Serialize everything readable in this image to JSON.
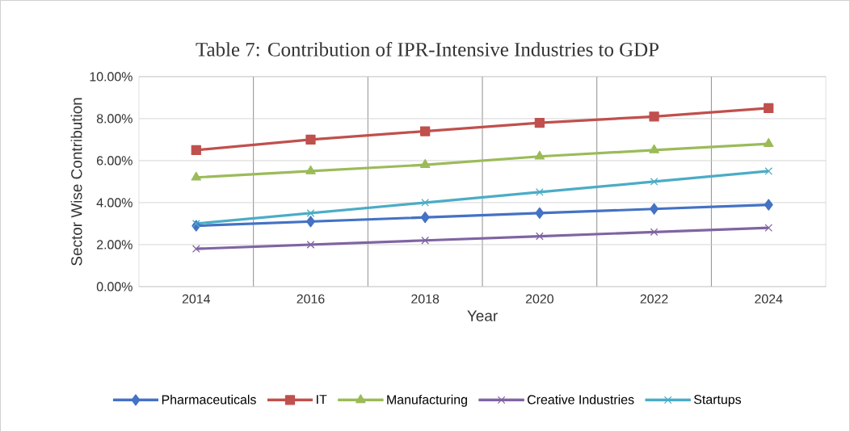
{
  "chart_data": {
    "type": "line",
    "title": "Table 7: Contribution of IPR-Intensive Industries to GDP",
    "xlabel": "Year",
    "ylabel": "Sector Wise Contribution",
    "categories": [
      "2014",
      "2016",
      "2018",
      "2020",
      "2022",
      "2024"
    ],
    "series": [
      {
        "name": "Pharmaceuticals",
        "color": "#4472c4",
        "marker": "diamond",
        "values": [
          2.9,
          3.1,
          3.3,
          3.5,
          3.7,
          3.9
        ]
      },
      {
        "name": "IT",
        "color": "#c0504d",
        "marker": "square",
        "values": [
          6.5,
          7.0,
          7.4,
          7.8,
          8.1,
          8.5
        ]
      },
      {
        "name": "Manufacturing",
        "color": "#9bbb59",
        "marker": "triangle",
        "values": [
          5.2,
          5.5,
          5.8,
          6.2,
          6.5,
          6.8
        ]
      },
      {
        "name": "Creative Industries",
        "color": "#8064a2",
        "marker": "cross",
        "values": [
          1.8,
          2.0,
          2.2,
          2.4,
          2.6,
          2.8
        ]
      },
      {
        "name": "Startups",
        "color": "#4bacc6",
        "marker": "cross",
        "values": [
          3.0,
          3.5,
          4.0,
          4.5,
          5.0,
          5.5
        ]
      }
    ],
    "ylim": [
      0,
      10
    ],
    "yticks": [
      {
        "value": 0,
        "label": "0.00%"
      },
      {
        "value": 2,
        "label": "2.00%"
      },
      {
        "value": 4,
        "label": "4.00%"
      },
      {
        "value": 6,
        "label": "6.00%"
      },
      {
        "value": 8,
        "label": "8.00%"
      },
      {
        "value": 10,
        "label": "10.00%"
      }
    ],
    "grid": true,
    "legend": "bottom"
  }
}
